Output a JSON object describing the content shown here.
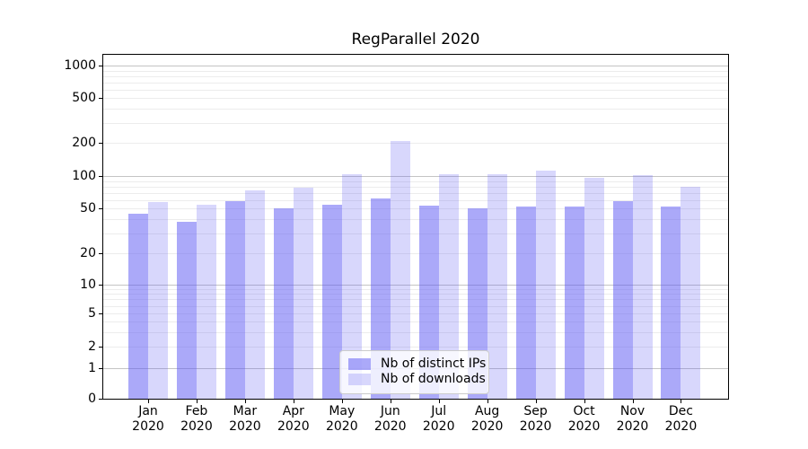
{
  "title": "RegParallel 2020",
  "chart_data": {
    "type": "bar",
    "title": "RegParallel 2020",
    "categories": [
      "Jan 2020",
      "Feb 2020",
      "Mar 2020",
      "Apr 2020",
      "May 2020",
      "Jun 2020",
      "Jul 2020",
      "Aug 2020",
      "Sep 2020",
      "Oct 2020",
      "Nov 2020",
      "Dec 2020"
    ],
    "series": [
      {
        "name": "Nb of distinct IPs",
        "values": [
          45,
          38,
          59,
          50,
          54,
          62,
          53,
          50,
          52,
          52,
          59,
          52
        ]
      },
      {
        "name": "Nb of downloads",
        "values": [
          58,
          54,
          74,
          78,
          105,
          208,
          105,
          104,
          113,
          96,
          103,
          80
        ]
      }
    ],
    "yscale": "symlog",
    "ylim": [
      0,
      1300
    ],
    "y_ticks": [
      0,
      1,
      2,
      5,
      10,
      20,
      50,
      100,
      200,
      500,
      1000
    ],
    "grid": true,
    "legend_position": "lower center",
    "xlabel": "",
    "ylabel": ""
  },
  "x_axis": {
    "months": [
      "Jan",
      "Feb",
      "Mar",
      "Apr",
      "May",
      "Jun",
      "Jul",
      "Aug",
      "Sep",
      "Oct",
      "Nov",
      "Dec"
    ],
    "year": "2020"
  },
  "y_axis": {
    "tick_labels": [
      "0",
      "1",
      "2",
      "5",
      "10",
      "20",
      "50",
      "100",
      "200",
      "500",
      "1000"
    ]
  },
  "legend": {
    "items": [
      {
        "label": "Nb of distinct IPs",
        "swatch": "ips"
      },
      {
        "label": "Nb of downloads",
        "swatch": "downloads"
      }
    ]
  },
  "colors": {
    "ips_bar": "rgba(88,83,243,0.50)",
    "downloads_bar": "rgba(88,83,243,0.235)",
    "grid_minor": "#ececec",
    "grid_major": "#c4c4c4",
    "axis_line": "#000000",
    "legend_border": "#cccccc"
  }
}
